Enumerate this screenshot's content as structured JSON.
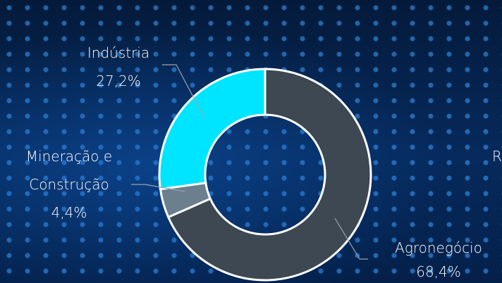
{
  "chart_data": {
    "type": "donut",
    "categories": [
      "Agronegócio",
      "Mineração e Construção",
      "Indústria"
    ],
    "values": [
      68.4,
      4.4,
      27.2
    ],
    "value_labels": [
      "68,4%",
      "4,4%",
      "27,2%"
    ],
    "colors": [
      "#3d4852",
      "#6b7f8f",
      "#00e5ff"
    ]
  },
  "partial_label": "R"
}
